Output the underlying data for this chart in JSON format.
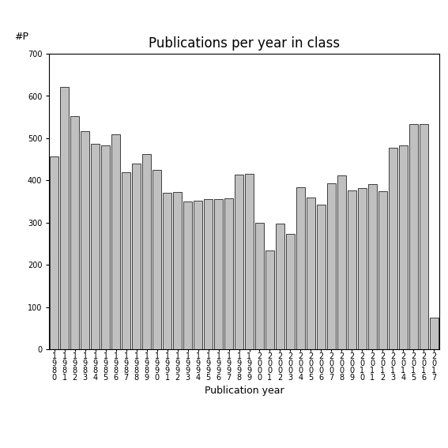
{
  "title": "Publications per year in class",
  "xlabel": "Publication year",
  "ylabel": "#P",
  "ylim": [
    0,
    700
  ],
  "yticks": [
    0,
    100,
    200,
    300,
    400,
    500,
    600,
    700
  ],
  "categories": [
    "1\n9\n8\n0",
    "1\n9\n8\n1",
    "1\n9\n8\n2",
    "1\n9\n8\n3",
    "1\n9\n8\n4",
    "1\n9\n8\n5",
    "1\n9\n8\n6",
    "1\n9\n8\n7",
    "1\n9\n8\n8",
    "1\n9\n8\n9",
    "1\n9\n9\n0",
    "1\n9\n9\n1",
    "1\n9\n9\n2",
    "1\n9\n9\n3",
    "1\n9\n9\n4",
    "1\n9\n9\n5",
    "1\n9\n9\n6",
    "1\n9\n9\n7",
    "1\n9\n9\n8",
    "1\n9\n9\n9",
    "2\n0\n0\n0",
    "2\n0\n0\n1",
    "2\n0\n0\n2",
    "2\n0\n0\n3",
    "2\n0\n0\n4",
    "2\n0\n0\n5",
    "2\n0\n0\n6",
    "2\n0\n0\n7",
    "2\n0\n0\n8",
    "2\n0\n0\n9",
    "2\n0\n1\n0",
    "2\n0\n1\n1",
    "2\n0\n1\n2",
    "2\n0\n1\n3",
    "2\n0\n1\n4",
    "2\n0\n1\n5",
    "2\n0\n1\n6",
    "2\n0\n1\n7"
  ],
  "values": [
    457,
    622,
    553,
    516,
    487,
    484,
    510,
    420,
    440,
    463,
    425,
    370,
    372,
    350,
    352,
    355,
    355,
    358,
    414,
    416,
    300,
    234,
    298,
    273,
    384,
    360,
    342,
    393,
    412,
    376,
    383,
    391,
    375,
    478,
    484,
    533,
    533,
    75
  ],
  "bar_color": "#c0c0c0",
  "bar_edge_color": "#000000",
  "background_color": "#ffffff",
  "title_fontsize": 12,
  "axis_fontsize": 9,
  "tick_fontsize": 7,
  "ylabel_fontsize": 9
}
